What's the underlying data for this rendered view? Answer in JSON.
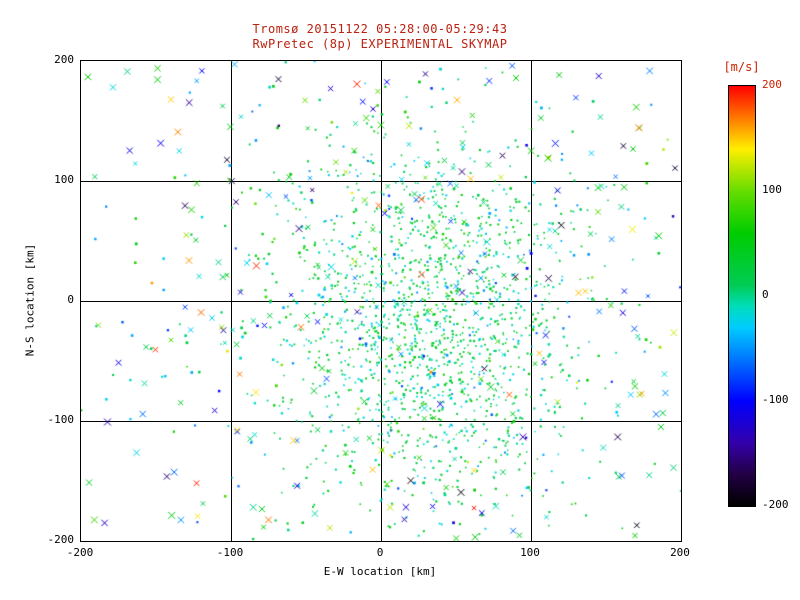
{
  "header": {
    "title_line1": "Tromsø 20151122 05:28:00-05:29:43",
    "title_line2": "RwPretec (8p) EXPERIMENTAL SKYMAP",
    "title_color": "#bb2211"
  },
  "chart_data": {
    "type": "scatter",
    "title": "Tromsø 20151122 05:28:00-05:29:43 / RwPretec (8p) EXPERIMENTAL SKYMAP",
    "xlabel": "E-W location [km]",
    "ylabel": "N-S location [km]",
    "xlim": [
      -200,
      200
    ],
    "ylim": [
      -200,
      200
    ],
    "xticks": [
      -200,
      -100,
      0,
      100,
      200
    ],
    "yticks": [
      200,
      100,
      0,
      -100,
      -200
    ],
    "xtick_labels": [
      "-200",
      "-100",
      "0",
      "100",
      "200"
    ],
    "ytick_labels": [
      "200",
      "100",
      "0",
      "-100",
      "-200"
    ],
    "grid": true,
    "grid_values": [
      -100,
      0,
      100
    ],
    "legend_position": "none",
    "colorbar": {
      "label": "[m/s]",
      "label_color": "#cc2200",
      "min": -200,
      "max": 200,
      "tick_labels": [
        "200",
        "100",
        "0",
        "-100",
        "-200"
      ],
      "tick_colors": [
        "#cc2200",
        "#000000",
        "#000000",
        "#000000",
        "#000000"
      ],
      "stops": [
        {
          "v": -200,
          "c": "#000000"
        },
        {
          "v": -170,
          "c": "#220044"
        },
        {
          "v": -140,
          "c": "#3300aa"
        },
        {
          "v": -100,
          "c": "#0000ff"
        },
        {
          "v": -60,
          "c": "#0077ff"
        },
        {
          "v": -30,
          "c": "#00ccff"
        },
        {
          "v": -10,
          "c": "#00ddbb"
        },
        {
          "v": 10,
          "c": "#00cc55"
        },
        {
          "v": 60,
          "c": "#00cc00"
        },
        {
          "v": 100,
          "c": "#66dd00"
        },
        {
          "v": 140,
          "c": "#ffee00"
        },
        {
          "v": 170,
          "c": "#ff7700"
        },
        {
          "v": 200,
          "c": "#ff0000"
        }
      ]
    },
    "point_model": {
      "description": "Dense central echo cluster of small green/teal dots centered near (35,-20) km, a wider mixed cluster of dots and x-markers, and sparse multicolor x-marker outliers spread over the full field of view; marker color encodes line-of-sight velocity in m/s.",
      "seed": 20151122,
      "clusters": [
        {
          "n": 1500,
          "dist": "gauss",
          "cx": 35,
          "cy": -20,
          "sx": 50,
          "sy": 75,
          "marker": "dot",
          "x_frac": 0.04,
          "v_mean": 15,
          "v_sigma": 30,
          "v_uniform": false,
          "size": [
            1.4,
            2.2
          ]
        },
        {
          "n": 520,
          "dist": "gauss",
          "cx": 5,
          "cy": 5,
          "sx": 105,
          "sy": 105,
          "marker": "mix",
          "x_frac": 0.28,
          "v_mean": 5,
          "v_sigma": 55,
          "v_uniform": false,
          "size": [
            1.8,
            2.8
          ]
        },
        {
          "n": 170,
          "dist": "uniform",
          "cx": 0,
          "cy": 0,
          "sx": 0,
          "sy": 0,
          "marker": "x",
          "x_frac": 1.0,
          "v_mean": 0,
          "v_sigma": 0,
          "v_uniform": true,
          "size": [
            2.5,
            3.5
          ]
        }
      ]
    }
  }
}
